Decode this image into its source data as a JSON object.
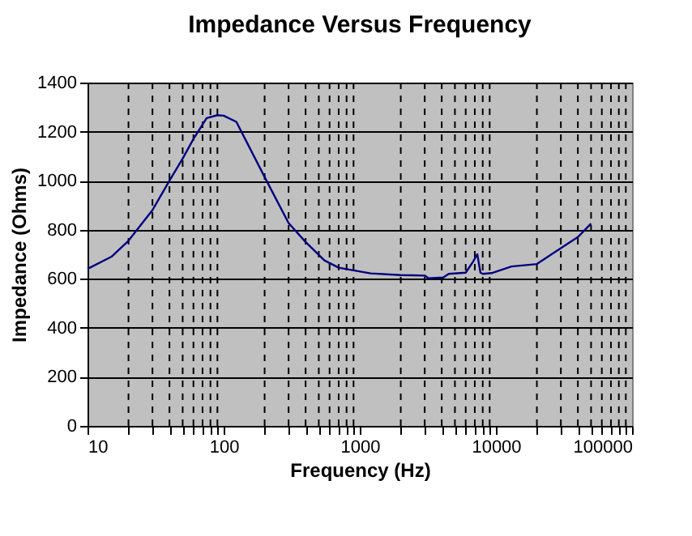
{
  "chart_data": {
    "type": "line",
    "title": "Impedance Versus Frequency",
    "xlabel": "Frequency (Hz)",
    "ylabel": "Impedance (Ohms)",
    "log": "x",
    "grid": true,
    "line_style": "solid",
    "marker": "none",
    "xlim": [
      10,
      100000
    ],
    "ylim": [
      0,
      1400
    ],
    "xticks": [
      10,
      {
        "value": 20,
        "label": null
      },
      {
        "value": 30,
        "label": null
      },
      {
        "value": 40,
        "label": null
      },
      {
        "value": 50,
        "label": null
      },
      {
        "value": 60,
        "label": null
      },
      {
        "value": 70,
        "label": null
      },
      {
        "value": 80,
        "label": null
      },
      {
        "value": 90,
        "label": null
      },
      100,
      {
        "value": 200,
        "label": null
      },
      {
        "value": 300,
        "label": null
      },
      {
        "value": 400,
        "label": null
      },
      {
        "value": 500,
        "label": null
      },
      {
        "value": 600,
        "label": null
      },
      {
        "value": 700,
        "label": null
      },
      {
        "value": 800,
        "label": null
      },
      {
        "value": 900,
        "label": null
      },
      1000,
      {
        "value": 2000,
        "label": null
      },
      {
        "value": 3000,
        "label": null
      },
      {
        "value": 4000,
        "label": null
      },
      {
        "value": 5000,
        "label": null
      },
      {
        "value": 6000,
        "label": null
      },
      {
        "value": 7000,
        "label": null
      },
      {
        "value": 8000,
        "label": null
      },
      {
        "value": 9000,
        "label": null
      },
      10000,
      {
        "value": 20000,
        "label": null
      },
      {
        "value": 30000,
        "label": null
      },
      {
        "value": 40000,
        "label": null
      },
      {
        "value": 50000,
        "label": null
      },
      {
        "value": 60000,
        "label": null
      },
      {
        "value": 70000,
        "label": null
      },
      {
        "value": 80000,
        "label": null
      },
      {
        "value": 90000,
        "label": null
      },
      100000
    ],
    "yticks": [
      0,
      200,
      400,
      600,
      800,
      1000,
      1200,
      1400
    ],
    "series": [
      {
        "color": "#000080",
        "x": [
          10,
          15,
          20,
          30,
          40,
          50,
          60,
          75,
          90,
          100,
          124,
          200,
          300,
          400,
          550,
          700,
          1200,
          2000,
          3000,
          3200,
          4100,
          4500,
          6000,
          6800,
          7300,
          7700,
          8000,
          9300,
          13000,
          20000,
          30000,
          40000,
          50000
        ],
        "values": [
          640,
          690,
          755,
          880,
          1000,
          1090,
          1170,
          1255,
          1267,
          1265,
          1240,
          1015,
          827,
          750,
          675,
          645,
          622,
          615,
          613,
          602,
          605,
          620,
          625,
          670,
          700,
          625,
          620,
          623,
          650,
          660,
          725,
          770,
          825
        ]
      }
    ]
  }
}
